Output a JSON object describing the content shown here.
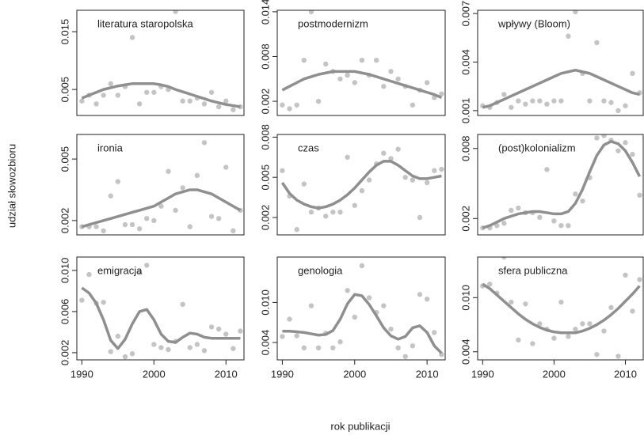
{
  "ylabel": "udział słowozbioru",
  "xlabel": "rok publikacji",
  "chart_data": [
    {
      "type": "scatter",
      "title": "literatura staropolska",
      "x": [
        1990,
        1991,
        1992,
        1993,
        1994,
        1995,
        1996,
        1997,
        1998,
        1999,
        2000,
        2001,
        2002,
        2003,
        2004,
        2005,
        2006,
        2007,
        2008,
        2009,
        2010,
        2011,
        2012
      ],
      "xlim": [
        1989.3,
        2012.5
      ],
      "ylim": [
        0.0005,
        0.0187
      ],
      "yticks": [
        0.005,
        0.015
      ],
      "series": [
        {
          "color": "#c4c4c4",
          "mark": "point",
          "values": [
            0.003,
            0.004,
            0.0025,
            0.004,
            0.006,
            0.004,
            0.0055,
            0.014,
            0.0025,
            0.0045,
            0.0045,
            0.0055,
            0.005,
            0.0185,
            0.003,
            0.003,
            0.0035,
            0.0025,
            0.0045,
            0.002,
            0.003,
            0.0015,
            0.002
          ]
        },
        {
          "color": "#8f8f8f",
          "mark": "line",
          "values": [
            0.0035,
            0.004,
            0.0045,
            0.005,
            0.0053,
            0.0056,
            0.0058,
            0.006,
            0.006,
            0.006,
            0.006,
            0.0058,
            0.0055,
            0.005,
            0.0046,
            0.0042,
            0.0038,
            0.0034,
            0.003,
            0.0027,
            0.0024,
            0.0022,
            0.002
          ]
        }
      ]
    },
    {
      "type": "scatter",
      "title": "postmodernizm",
      "x": [
        1990,
        1991,
        1992,
        1993,
        1994,
        1995,
        1996,
        1997,
        1998,
        1999,
        2000,
        2001,
        2002,
        2003,
        2004,
        2005,
        2006,
        2007,
        2008,
        2009,
        2010,
        2011,
        2012
      ],
      "xlim": [
        1989.3,
        2012.5
      ],
      "ylim": [
        0.0001,
        0.0142
      ],
      "yticks": [
        0.002,
        0.008,
        0.014
      ],
      "series": [
        {
          "color": "#c4c4c4",
          "mark": "point",
          "values": [
            0.0015,
            0.001,
            0.0015,
            0.0075,
            0.014,
            0.002,
            0.007,
            0.006,
            0.005,
            0.0055,
            0.0045,
            0.0075,
            0.0055,
            0.0075,
            0.004,
            0.006,
            0.005,
            0.004,
            0.0015,
            0.0035,
            0.0045,
            0.0025,
            0.003
          ]
        },
        {
          "color": "#8f8f8f",
          "mark": "line",
          "values": [
            0.0035,
            0.004,
            0.0045,
            0.005,
            0.0053,
            0.0056,
            0.0058,
            0.006,
            0.006,
            0.006,
            0.006,
            0.0058,
            0.0056,
            0.0053,
            0.005,
            0.0047,
            0.0044,
            0.0041,
            0.0038,
            0.0035,
            0.0032,
            0.0029,
            0.0025
          ]
        }
      ]
    },
    {
      "type": "scatter",
      "title": "wpływy (Bloom)",
      "x": [
        1990,
        1991,
        1992,
        1993,
        1994,
        1995,
        1996,
        1997,
        1998,
        1999,
        2000,
        2001,
        2002,
        2003,
        2004,
        2005,
        2006,
        2007,
        2008,
        2009,
        2010,
        2011,
        2012
      ],
      "xlim": [
        1989.3,
        2012.5
      ],
      "ylim": [
        0.0007,
        0.0072
      ],
      "yticks": [
        0.001,
        0.004,
        0.007
      ],
      "series": [
        {
          "color": "#c4c4c4",
          "mark": "point",
          "values": [
            0.0013,
            0.0012,
            0.0015,
            0.002,
            0.0012,
            0.0016,
            0.0014,
            0.0016,
            0.0016,
            0.0014,
            0.0016,
            0.0016,
            0.0056,
            0.0071,
            0.0033,
            0.0016,
            0.0052,
            0.0016,
            0.0015,
            0.001,
            0.0013,
            0.0033,
            0.0021
          ]
        },
        {
          "color": "#8f8f8f",
          "mark": "line",
          "values": [
            0.0012,
            0.0013,
            0.0015,
            0.0017,
            0.0019,
            0.0021,
            0.0023,
            0.0025,
            0.0027,
            0.0029,
            0.0031,
            0.0033,
            0.0034,
            0.0035,
            0.0034,
            0.0033,
            0.0031,
            0.0029,
            0.0027,
            0.0025,
            0.0023,
            0.0021,
            0.002
          ]
        }
      ]
    },
    {
      "type": "scatter",
      "title": "ironia",
      "x": [
        1990,
        1991,
        1992,
        1993,
        1994,
        1995,
        1996,
        1997,
        1998,
        1999,
        2000,
        2001,
        2002,
        2003,
        2004,
        2005,
        2006,
        2007,
        2008,
        2009,
        2010,
        2011,
        2012
      ],
      "xlim": [
        1989.3,
        2012.5
      ],
      "ylim": [
        0.0013,
        0.0062
      ],
      "yticks": [
        0.002,
        0.005
      ],
      "series": [
        {
          "color": "#c4c4c4",
          "mark": "point",
          "values": [
            0.0017,
            0.0017,
            0.0017,
            0.0015,
            0.0032,
            0.0039,
            0.0018,
            0.0018,
            0.0016,
            0.0021,
            0.002,
            0.0027,
            0.0044,
            0.0025,
            0.0036,
            0.0017,
            0.0042,
            0.0058,
            0.0022,
            0.0021,
            0.0046,
            0.0015,
            0.0025
          ]
        },
        {
          "color": "#8f8f8f",
          "mark": "line",
          "values": [
            0.0017,
            0.0018,
            0.0019,
            0.002,
            0.0021,
            0.0022,
            0.0023,
            0.0024,
            0.0025,
            0.0026,
            0.0027,
            0.0029,
            0.0031,
            0.0033,
            0.0034,
            0.0035,
            0.0035,
            0.0034,
            0.0033,
            0.0031,
            0.0029,
            0.0027,
            0.0025
          ]
        }
      ]
    },
    {
      "type": "scatter",
      "title": "czas",
      "x": [
        1990,
        1991,
        1992,
        1993,
        1994,
        1995,
        1996,
        1997,
        1998,
        1999,
        2000,
        2001,
        2002,
        2003,
        2004,
        2005,
        2006,
        2007,
        2008,
        2009,
        2010,
        2011,
        2012
      ],
      "xlim": [
        1989.3,
        2012.5
      ],
      "ylim": [
        0.0007,
        0.0082
      ],
      "yticks": [
        0.002,
        0.005,
        0.008
      ],
      "series": [
        {
          "color": "#c4c4c4",
          "mark": "point",
          "values": [
            0.0055,
            0.0036,
            0.0011,
            0.0045,
            0.0024,
            0.0027,
            0.0021,
            0.0024,
            0.0024,
            0.0065,
            0.0029,
            0.004,
            0.0048,
            0.006,
            0.0068,
            0.0064,
            0.0071,
            0.005,
            0.0048,
            0.002,
            0.0046,
            0.0055,
            0.0056
          ]
        },
        {
          "color": "#8f8f8f",
          "mark": "line",
          "values": [
            0.0046,
            0.0038,
            0.0033,
            0.003,
            0.0028,
            0.0027,
            0.0028,
            0.003,
            0.0033,
            0.0037,
            0.0042,
            0.0048,
            0.0054,
            0.0059,
            0.0062,
            0.0062,
            0.0059,
            0.0055,
            0.0051,
            0.0049,
            0.0049,
            0.005,
            0.0051
          ]
        }
      ]
    },
    {
      "type": "scatter",
      "title": "(post)kolonializm",
      "x": [
        1990,
        1991,
        1992,
        1993,
        1994,
        1995,
        1996,
        1997,
        1998,
        1999,
        2000,
        2001,
        2002,
        2003,
        2004,
        2005,
        2006,
        2007,
        2008,
        2009,
        2010,
        2011,
        2012
      ],
      "xlim": [
        1989.3,
        2012.5
      ],
      "ylim": [
        0.0006,
        0.0092
      ],
      "yticks": [
        0.002,
        0.008
      ],
      "series": [
        {
          "color": "#c4c4c4",
          "mark": "point",
          "values": [
            0.0012,
            0.0012,
            0.0014,
            0.0016,
            0.0027,
            0.0029,
            0.0025,
            0.0025,
            0.0021,
            0.0062,
            0.0018,
            0.0014,
            0.0014,
            0.0041,
            0.0035,
            0.0055,
            0.0089,
            0.0091,
            0.0087,
            0.0078,
            0.0085,
            0.0075,
            0.004
          ]
        },
        {
          "color": "#8f8f8f",
          "mark": "line",
          "values": [
            0.0012,
            0.0014,
            0.0017,
            0.002,
            0.0022,
            0.0024,
            0.0025,
            0.0026,
            0.0026,
            0.0025,
            0.0024,
            0.0024,
            0.0026,
            0.0033,
            0.0045,
            0.006,
            0.0074,
            0.0083,
            0.0086,
            0.0084,
            0.0078,
            0.0068,
            0.0056
          ]
        }
      ]
    },
    {
      "type": "scatter",
      "title": "emigracja",
      "x": [
        1990,
        1991,
        1992,
        1993,
        1994,
        1995,
        1996,
        1997,
        1998,
        1999,
        2000,
        2001,
        2002,
        2003,
        2004,
        2005,
        2006,
        2007,
        2008,
        2009,
        2010,
        2011,
        2012
      ],
      "xlim": [
        1989.3,
        2012.5
      ],
      "ylim": [
        0.0013,
        0.0113
      ],
      "xticks": [
        1990,
        2000,
        2010
      ],
      "yticks": [
        {
          "value": 0.002,
          "label": "0.002"
        },
        {
          "value": 0.006,
          "label": "0.006"
        },
        {
          "value": 0.01,
          "label": "0.010"
        }
      ],
      "series": [
        {
          "color": "#c4c4c4",
          "mark": "point",
          "values": [
            0.0071,
            0.0096,
            0.0068,
            0.0069,
            0.0021,
            0.0036,
            0.0016,
            0.0019,
            0.0098,
            0.0105,
            0.0028,
            0.0025,
            0.0023,
            0.0031,
            0.0067,
            0.0025,
            0.0028,
            0.0022,
            0.0045,
            0.0043,
            0.0038,
            0.0024,
            0.0041
          ]
        },
        {
          "color": "#8f8f8f",
          "mark": "line",
          "values": [
            0.0083,
            0.0078,
            0.0068,
            0.0052,
            0.0032,
            0.0024,
            0.0033,
            0.0048,
            0.006,
            0.0062,
            0.0052,
            0.0038,
            0.0031,
            0.003,
            0.0035,
            0.0039,
            0.0038,
            0.0035,
            0.0034,
            0.0034,
            0.0034,
            0.0034,
            0.0034
          ]
        }
      ]
    },
    {
      "type": "scatter",
      "title": "genologia",
      "x": [
        1990,
        1991,
        1992,
        1993,
        1994,
        1995,
        1996,
        1997,
        1998,
        1999,
        2000,
        2001,
        2002,
        2003,
        2004,
        2005,
        2006,
        2007,
        2008,
        2009,
        2010,
        2011,
        2012
      ],
      "xlim": [
        1989.3,
        2012.5
      ],
      "ylim": [
        0.0014,
        0.0168
      ],
      "xticks": [
        1990,
        2000,
        2010
      ],
      "yticks": [
        0.004,
        {
          "value": 0.01,
          "label": "0.010"
        }
      ],
      "series": [
        {
          "color": "#c4c4c4",
          "mark": "point",
          "values": [
            0.0049,
            0.0075,
            0.005,
            0.0032,
            0.0095,
            0.0032,
            0.0054,
            0.0032,
            0.0041,
            0.0118,
            0.0078,
            0.0155,
            0.0107,
            0.0085,
            0.0095,
            0.006,
            0.0032,
            0.0019,
            0.0035,
            0.0112,
            0.0105,
            0.0055,
            0.0022
          ]
        },
        {
          "color": "#8f8f8f",
          "mark": "line",
          "values": [
            0.0057,
            0.0057,
            0.0056,
            0.0055,
            0.0053,
            0.0051,
            0.0052,
            0.0058,
            0.0075,
            0.0098,
            0.0112,
            0.011,
            0.0097,
            0.008,
            0.0062,
            0.005,
            0.0045,
            0.0049,
            0.0062,
            0.0065,
            0.0055,
            0.0035,
            0.0024
          ]
        }
      ]
    },
    {
      "type": "scatter",
      "title": "sfera publiczna",
      "x": [
        1990,
        1991,
        1992,
        1993,
        1994,
        1995,
        1996,
        1997,
        1998,
        1999,
        2000,
        2001,
        2002,
        2003,
        2004,
        2005,
        2006,
        2007,
        2008,
        2009,
        2010,
        2011,
        2012
      ],
      "xlim": [
        1989.3,
        2012.5
      ],
      "ylim": [
        0.0031,
        0.0145
      ],
      "xticks": [
        1990,
        2000,
        2010
      ],
      "yticks": [
        0.004,
        {
          "value": 0.01,
          "label": "0.010"
        }
      ],
      "series": [
        {
          "color": "#c4c4c4",
          "mark": "point",
          "values": [
            0.0113,
            0.0115,
            0.0105,
            0.0145,
            0.0095,
            0.0053,
            0.0093,
            0.0049,
            0.0071,
            0.0065,
            0.0055,
            0.0095,
            0.0057,
            0.0065,
            0.0071,
            0.0071,
            0.0037,
            0.0063,
            0.0089,
            0.0035,
            0.0125,
            0.0085,
            0.012
          ]
        },
        {
          "color": "#8f8f8f",
          "mark": "line",
          "values": [
            0.0115,
            0.011,
            0.0103,
            0.0096,
            0.0089,
            0.0082,
            0.0076,
            0.0071,
            0.0067,
            0.0064,
            0.0062,
            0.0061,
            0.0061,
            0.0061,
            0.0063,
            0.0066,
            0.007,
            0.0075,
            0.0081,
            0.0088,
            0.0096,
            0.0104,
            0.0113
          ]
        }
      ]
    }
  ]
}
